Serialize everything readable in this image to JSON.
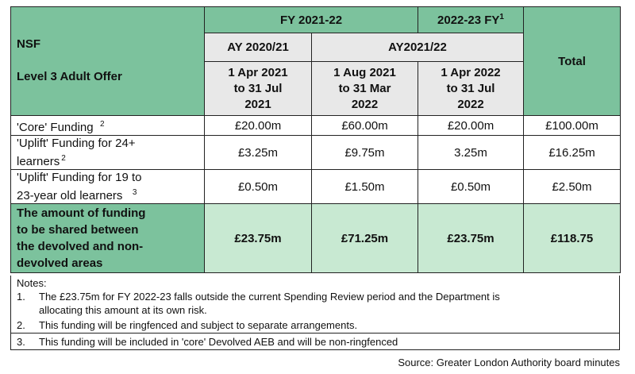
{
  "header": {
    "nsf": "NSF",
    "offer": "Level 3 Adult Offer",
    "fy_2122": "FY 2021-22",
    "fy_2223": "2022-23 FY",
    "fy_2223_note": "1",
    "total": "Total",
    "ay_2021": "AY 2020/21",
    "ay_2122": "AY2021/22",
    "period1_line1": "1 Apr 2021",
    "period1_line2": "to 31 Jul",
    "period1_line3": "2021",
    "period2_line1": "1 Aug 2021",
    "period2_line2": "to 31 Mar",
    "period2_line3": "2022",
    "period3_line1": "1 Apr 2022",
    "period3_line2": "to 31 Jul",
    "period3_line3": "2022"
  },
  "rows": [
    {
      "label_line1": "'Core' Funding",
      "label_note": "2",
      "values": [
        "£20.00m",
        "£60.00m",
        "£20.00m",
        "£100.00m"
      ]
    },
    {
      "label_line1": "'Uplift' Funding for 24+",
      "label_line2": "learners",
      "label_note": "2",
      "values": [
        "£3.25m",
        "£9.75m",
        "3.25m",
        "£16.25m"
      ]
    },
    {
      "label_line1": "'Uplift' Funding for 19 to",
      "label_line2": "23-year old learners",
      "label_note": "3",
      "values": [
        "£0.50m",
        "£1.50m",
        "£0.50m",
        "£2.50m"
      ]
    }
  ],
  "total_row": {
    "label_line1": "The amount of funding",
    "label_line2": "to be shared between",
    "label_line3": "the devolved and non-",
    "label_line4": "devolved areas",
    "values": [
      "£23.75m",
      "£71.25m",
      "£23.75m",
      "£118.75"
    ]
  },
  "notes": {
    "title": "Notes:",
    "items": [
      {
        "num": "1.",
        "line1": "The £23.75m for FY 2022-23 falls outside the current Spending Review period and the Department is",
        "line2": "allocating this amount at its own risk."
      },
      {
        "num": "2.",
        "line1": "This funding will be ringfenced and subject to separate arrangements."
      },
      {
        "num": "3.",
        "line1": "This funding will be included in 'core' Devolved AEB and will be non-ringfenced"
      }
    ]
  },
  "source": "Source: Greater London Authority board minutes",
  "colors": {
    "header_green": "#7cc29d",
    "header_grey": "#e8e8e8",
    "highlight_light_green": "#c8e9d2"
  }
}
